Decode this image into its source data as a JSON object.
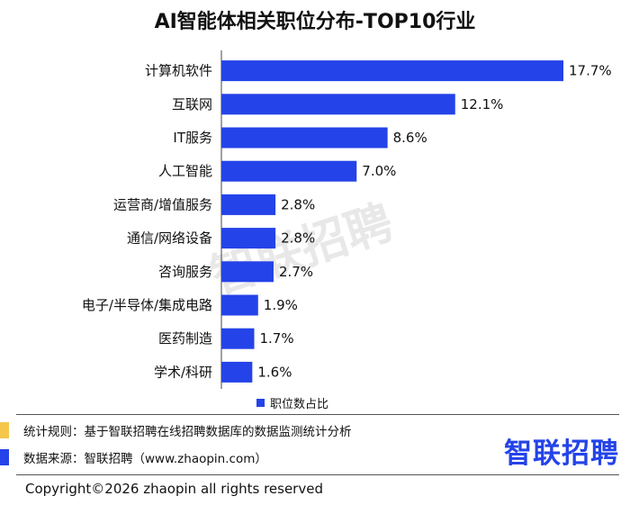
{
  "header": {
    "title": "AI智能体相关职位分布-TOP10行业"
  },
  "chart_data": {
    "type": "bar",
    "orientation": "horizontal",
    "title": "AI智能体相关职位分布-TOP10行业",
    "categories": [
      "计算机软件",
      "互联网",
      "IT服务",
      "人工智能",
      "运营商/增值服务",
      "通信/网络设备",
      "咨询服务",
      "电子/半导体/集成电路",
      "医药制造",
      "学术/科研"
    ],
    "series": [
      {
        "name": "职位数占比",
        "values": [
          17.7,
          12.1,
          8.6,
          7.0,
          2.8,
          2.8,
          2.7,
          1.9,
          1.7,
          1.6
        ]
      }
    ],
    "value_labels": [
      "17.7%",
      "12.1%",
      "8.6%",
      "7.0%",
      "2.8%",
      "2.8%",
      "2.7%",
      "1.9%",
      "1.7%",
      "1.6%"
    ],
    "xlim": [
      0,
      17.7
    ],
    "grid": false,
    "legend_position": "bottom",
    "bar_color": "#2443e8"
  },
  "legend": {
    "label": "职位数占比"
  },
  "notes": {
    "rule_text": "统计规则：基于智联招聘在线招聘数据库的数据监测统计分析",
    "source_text": "数据来源：智联招聘（www.zhaopin.com）"
  },
  "watermark": {
    "text": "智联招聘"
  },
  "brand": {
    "text": "智联招聘",
    "color": "#2443e8"
  },
  "footer": {
    "copyright": "Copyright©2026 zhaopin all rights reserved"
  },
  "colors": {
    "bar": "#2443e8",
    "marker_yellow": "#f5c64a",
    "marker_blue": "#2443e8"
  }
}
